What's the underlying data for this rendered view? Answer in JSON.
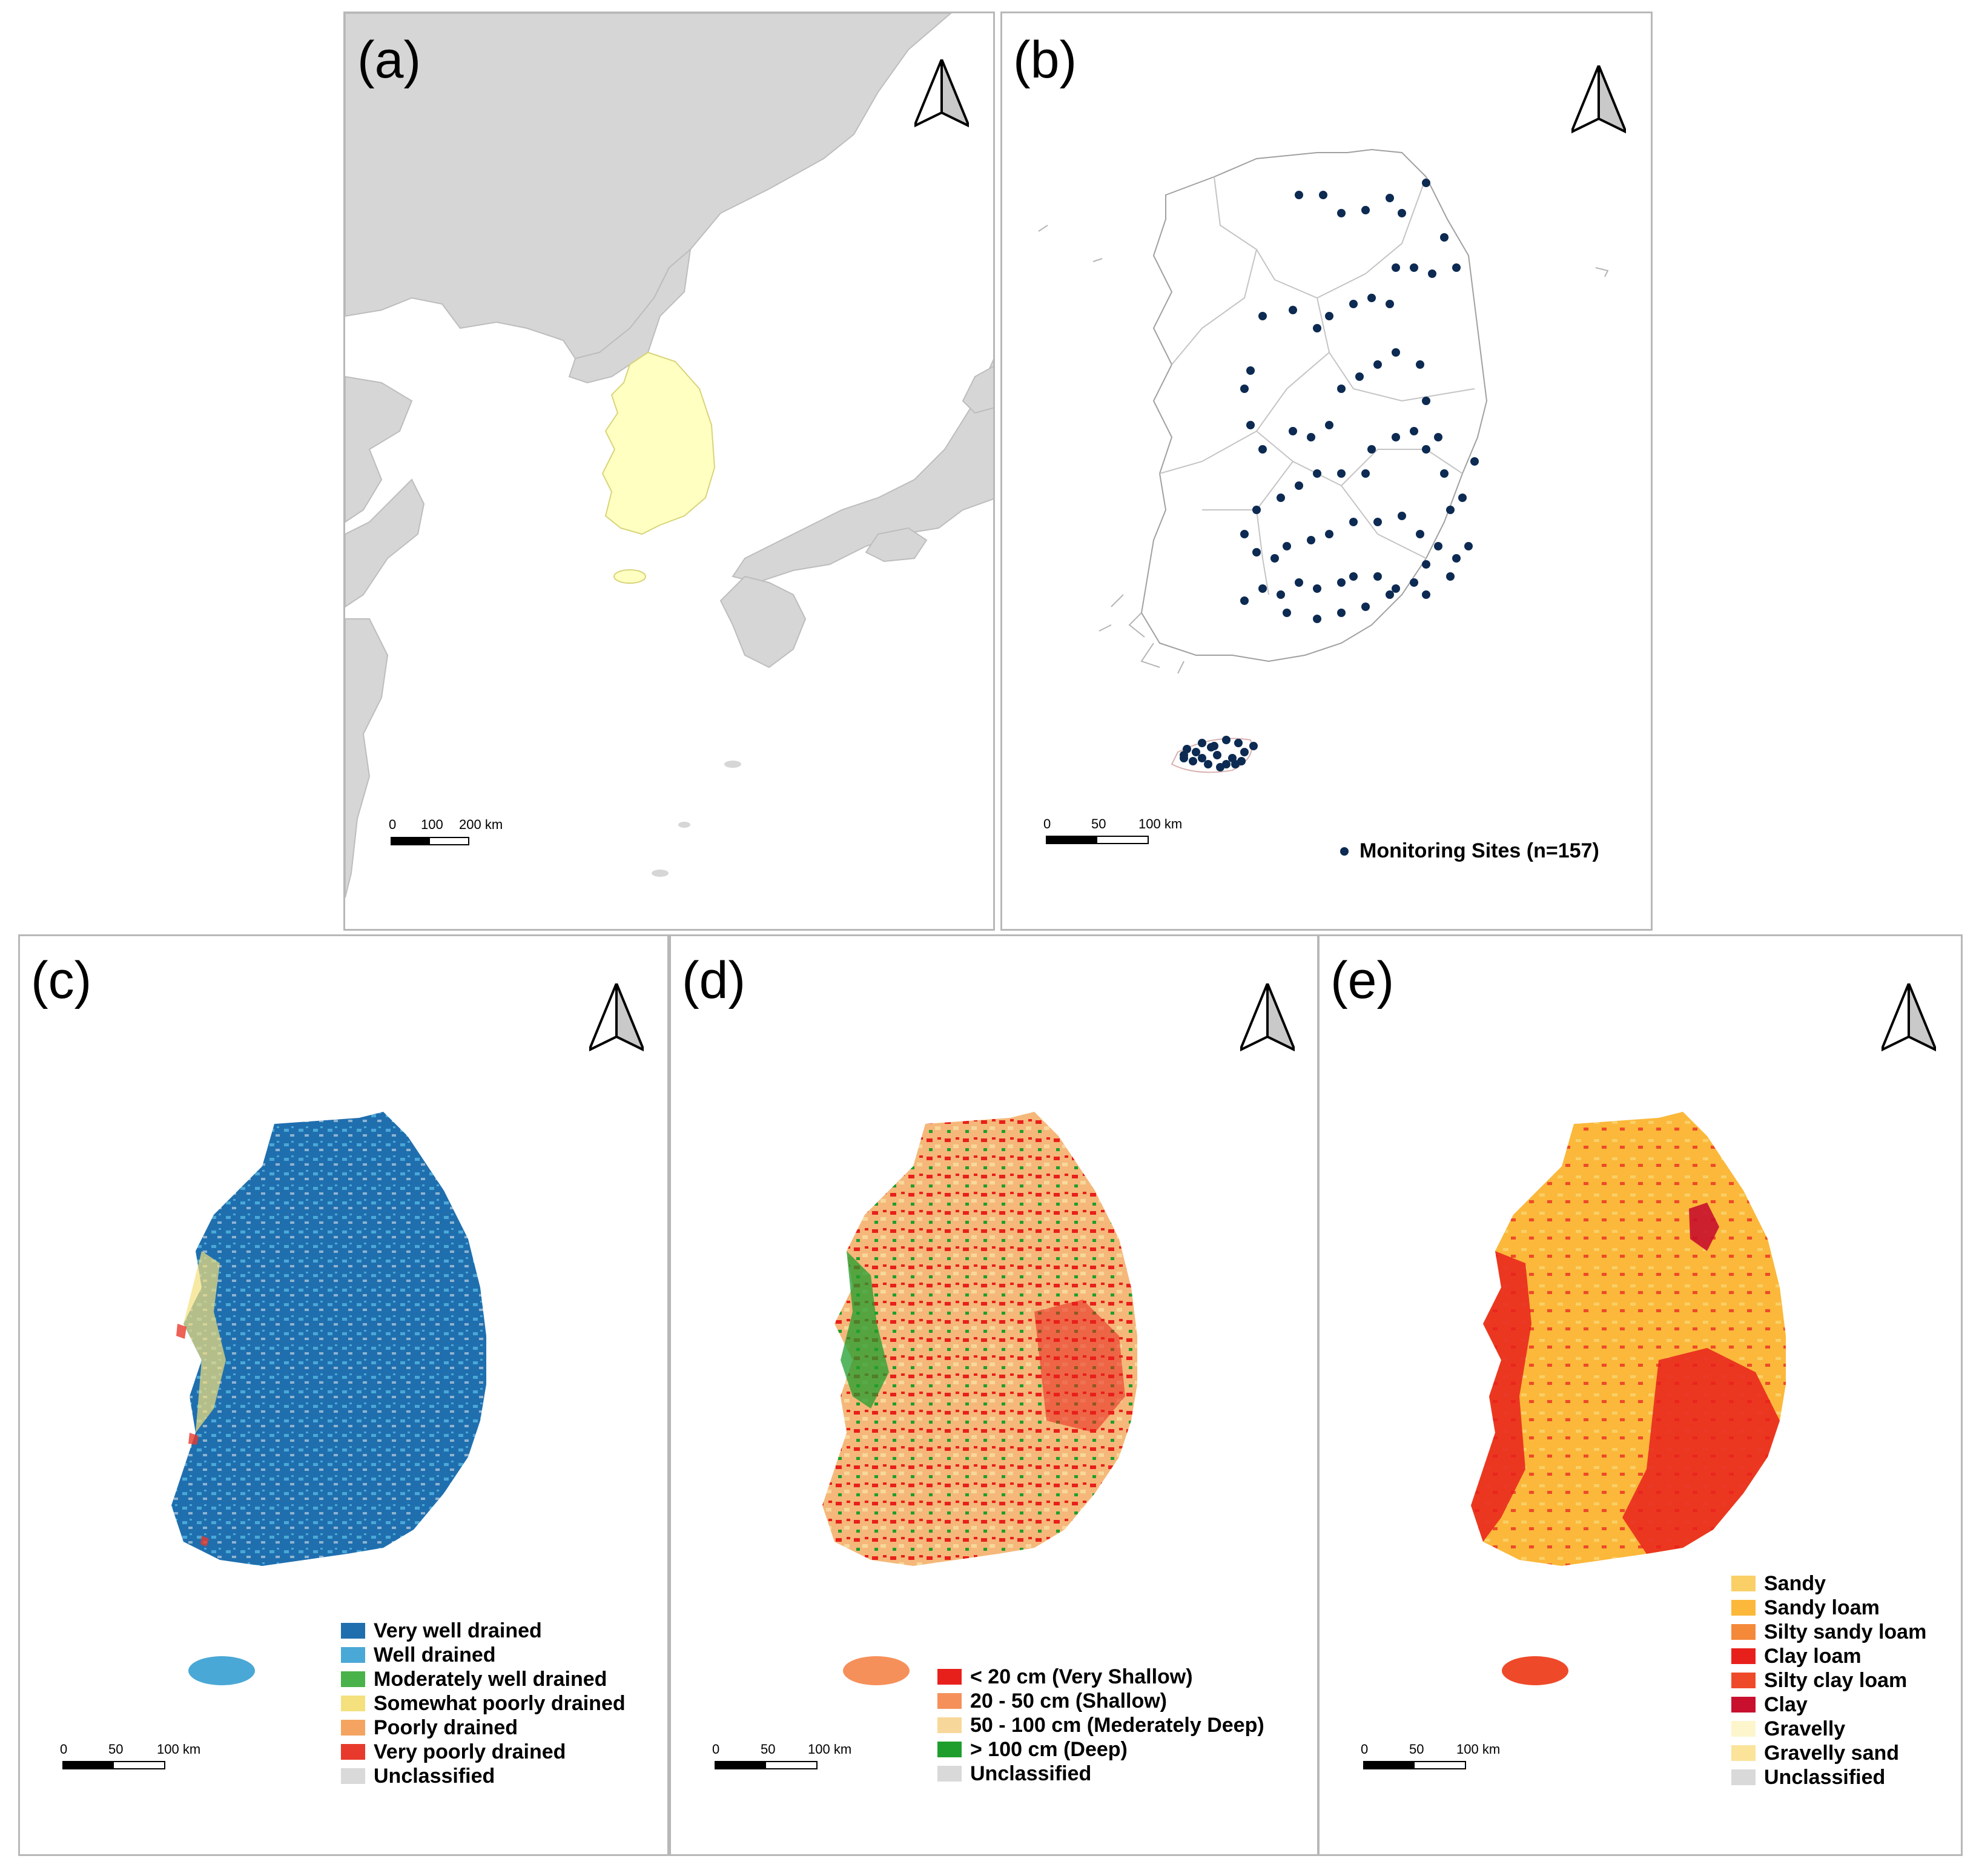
{
  "colors": {
    "land_other": "#d6d6d6",
    "korea_highlight": "#ffffc2",
    "sea": "#ffffff",
    "site_dot": "#0c2a52",
    "border_gray": "#b8b8b8"
  },
  "panels": {
    "a": {
      "label": "(a)",
      "north_icon": "north-arrow-icon",
      "scale": {
        "ticks": [
          "0",
          "100",
          "200 km"
        ]
      }
    },
    "b": {
      "label": "(b)",
      "north_icon": "north-arrow-icon",
      "scale": {
        "ticks": [
          "0",
          "50",
          "100 km"
        ]
      },
      "legend_label": "Monitoring Sites (n=157)"
    },
    "c": {
      "label": "(c)",
      "north_icon": "north-arrow-icon",
      "scale": {
        "ticks": [
          "0",
          "50",
          "100 km"
        ]
      },
      "legend": [
        {
          "label": "Very well drained",
          "color": "#1f6faf"
        },
        {
          "label": "Well drained",
          "color": "#4aa8d6"
        },
        {
          "label": "Moderately well drained",
          "color": "#4ab24a"
        },
        {
          "label": "Somewhat poorly drained",
          "color": "#f4e07c"
        },
        {
          "label": "Poorly drained",
          "color": "#f4a460"
        },
        {
          "label": "Very poorly drained",
          "color": "#e83a2c"
        },
        {
          "label": "Unclassified",
          "color": "#d9d9d9"
        }
      ]
    },
    "d": {
      "label": "(d)",
      "north_icon": "north-arrow-icon",
      "scale": {
        "ticks": [
          "0",
          "50",
          "100 km"
        ]
      },
      "legend": [
        {
          "label": "< 20 cm (Very Shallow)",
          "color": "#e8201c"
        },
        {
          "label": "20 - 50 cm (Shallow)",
          "color": "#f5905a"
        },
        {
          "label": "50 - 100 cm (Mederately Deep)",
          "color": "#f7d89a"
        },
        {
          "label": "> 100 cm (Deep)",
          "color": "#1f9e2e"
        },
        {
          "label": "Unclassified",
          "color": "#d9d9d9"
        }
      ]
    },
    "e": {
      "label": "(e)",
      "north_icon": "north-arrow-icon",
      "scale": {
        "ticks": [
          "0",
          "50",
          "100 km"
        ]
      },
      "legend": [
        {
          "label": "Sandy",
          "color": "#f9cf66"
        },
        {
          "label": "Sandy loam",
          "color": "#fbb83a"
        },
        {
          "label": "Silty sandy loam",
          "color": "#f5893a"
        },
        {
          "label": "Clay loam",
          "color": "#e8201c"
        },
        {
          "label": "Silty clay loam",
          "color": "#ee4a2a"
        },
        {
          "label": "Clay",
          "color": "#c8102e"
        },
        {
          "label": "Gravelly",
          "color": "#fdf5cc"
        },
        {
          "label": "Gravelly sand",
          "color": "#fbe39a"
        },
        {
          "label": "Unclassified",
          "color": "#d9d9d9"
        }
      ]
    }
  }
}
